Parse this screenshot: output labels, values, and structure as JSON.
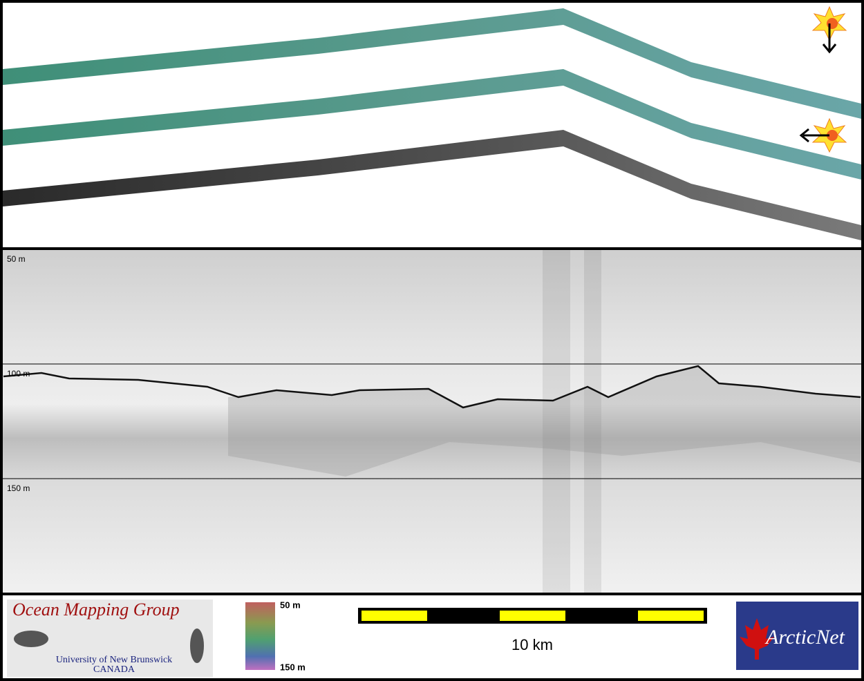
{
  "depth_labels": [
    "50 m",
    "100 m",
    "150 m"
  ],
  "logo_left": {
    "title": "Ocean Mapping Group",
    "subtitle": "University of New Brunswick",
    "country": "CANADA"
  },
  "colorbar": {
    "top": "50 m",
    "bottom": "150 m"
  },
  "scale_bar": {
    "label": "10 km"
  },
  "logo_right": {
    "title": "ArcticNet"
  }
}
